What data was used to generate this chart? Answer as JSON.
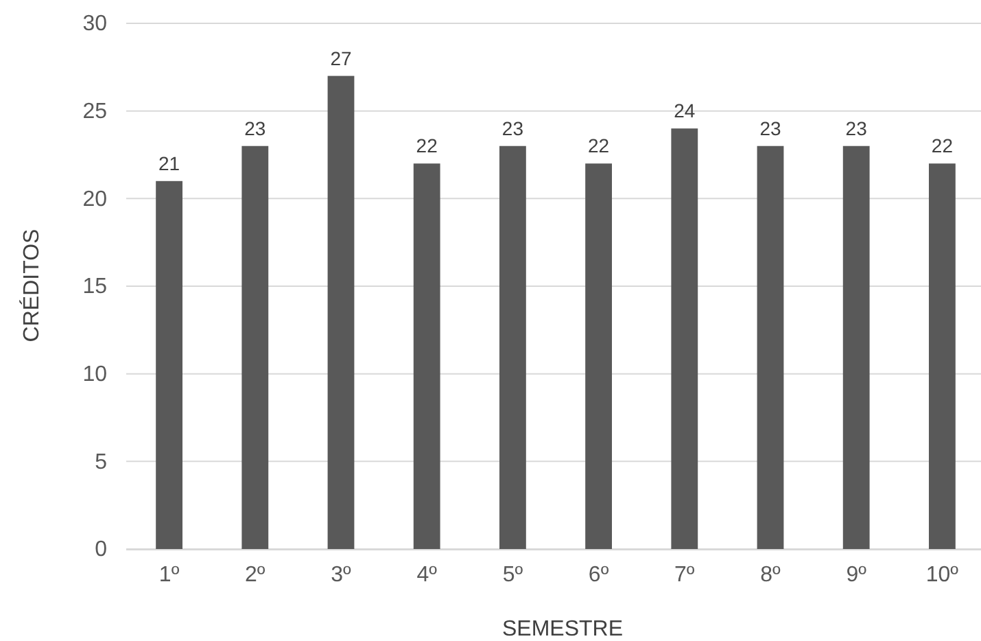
{
  "chart_data": {
    "type": "bar",
    "xlabel": "SEMESTRE",
    "ylabel": "CRÉDITOS",
    "categories": [
      "1º",
      "2º",
      "3º",
      "4º",
      "5º",
      "6º",
      "7º",
      "8º",
      "9º",
      "10º"
    ],
    "values": [
      21,
      23,
      27,
      22,
      23,
      22,
      24,
      23,
      23,
      22
    ],
    "color": "#595959",
    "ylim": [
      0,
      30
    ],
    "yticks": [
      0,
      5,
      10,
      15,
      20,
      25,
      30
    ],
    "grid": "y",
    "data_labels": true
  }
}
